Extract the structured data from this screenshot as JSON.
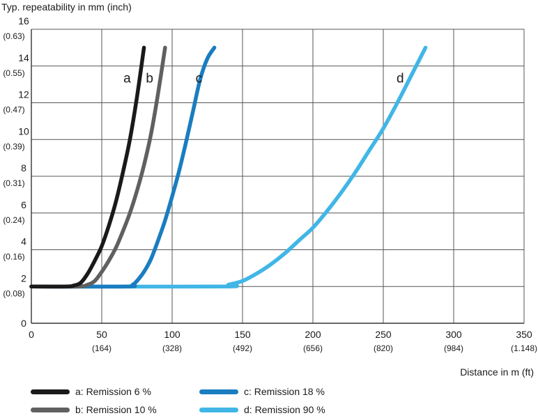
{
  "chart_data": {
    "type": "line",
    "ylabel": "Typ. repeatability in mm (inch)",
    "xlabel": "Distance in m (ft)",
    "xlim": [
      0,
      350
    ],
    "ylim": [
      0,
      16
    ],
    "grid": true,
    "x_ticks": [
      {
        "value": 0,
        "label": "0",
        "sublabel": ""
      },
      {
        "value": 50,
        "label": "50",
        "sublabel": "(164)"
      },
      {
        "value": 100,
        "label": "100",
        "sublabel": "(328)"
      },
      {
        "value": 150,
        "label": "150",
        "sublabel": "(492)"
      },
      {
        "value": 200,
        "label": "200",
        "sublabel": "(656)"
      },
      {
        "value": 250,
        "label": "250",
        "sublabel": "(820)"
      },
      {
        "value": 300,
        "label": "300",
        "sublabel": "(984)"
      },
      {
        "value": 350,
        "label": "350",
        "sublabel": "(1.148)"
      }
    ],
    "y_ticks": [
      {
        "value": 0,
        "label": "0",
        "sublabel": ""
      },
      {
        "value": 2,
        "label": "2",
        "sublabel": "(0.08)"
      },
      {
        "value": 4,
        "label": "4",
        "sublabel": "(0.16)"
      },
      {
        "value": 6,
        "label": "6",
        "sublabel": "(0.24)"
      },
      {
        "value": 8,
        "label": "8",
        "sublabel": "(0.31)"
      },
      {
        "value": 10,
        "label": "10",
        "sublabel": "(0.39)"
      },
      {
        "value": 12,
        "label": "12",
        "sublabel": "(0.47)"
      },
      {
        "value": 14,
        "label": "14",
        "sublabel": "(0.55)"
      },
      {
        "value": 16,
        "label": "16",
        "sublabel": "(0.63)"
      }
    ],
    "series": [
      {
        "name": "a",
        "legend": "a: Remission 6 %",
        "color": "#1a1a1a",
        "label_at": [
          68,
          13.1
        ],
        "points": [
          [
            0,
            2
          ],
          [
            25,
            2
          ],
          [
            30,
            2.05
          ],
          [
            35,
            2.2
          ],
          [
            40,
            2.7
          ],
          [
            45,
            3.4
          ],
          [
            50,
            4.2
          ],
          [
            55,
            5.3
          ],
          [
            60,
            6.6
          ],
          [
            65,
            8.2
          ],
          [
            70,
            10
          ],
          [
            75,
            12.3
          ],
          [
            80,
            15
          ]
        ]
      },
      {
        "name": "b",
        "legend": "b: Remission 10 %",
        "color": "#606060",
        "label_at": [
          84,
          13.1
        ],
        "points": [
          [
            0,
            2
          ],
          [
            33,
            2
          ],
          [
            40,
            2.1
          ],
          [
            45,
            2.3
          ],
          [
            50,
            2.8
          ],
          [
            55,
            3.4
          ],
          [
            60,
            4.1
          ],
          [
            65,
            5
          ],
          [
            70,
            6
          ],
          [
            75,
            7.2
          ],
          [
            80,
            8.6
          ],
          [
            85,
            10.3
          ],
          [
            90,
            12.5
          ],
          [
            95,
            15
          ]
        ]
      },
      {
        "name": "c",
        "legend": "c: Remission 18 %",
        "color": "#1a7dc0",
        "label_at": [
          119,
          13.1
        ],
        "points": [
          [
            0,
            2
          ],
          [
            67,
            2
          ],
          [
            72,
            2.1
          ],
          [
            75,
            2.3
          ],
          [
            80,
            2.8
          ],
          [
            85,
            3.5
          ],
          [
            90,
            4.5
          ],
          [
            95,
            5.6
          ],
          [
            100,
            6.9
          ],
          [
            105,
            8.3
          ],
          [
            110,
            9.9
          ],
          [
            115,
            11.6
          ],
          [
            120,
            13.3
          ],
          [
            125,
            14.4
          ],
          [
            130,
            15
          ]
        ]
      },
      {
        "name": "d",
        "legend": "d: Remission 90 %",
        "color": "#41b6e6",
        "label_at": [
          262,
          13.1
        ],
        "points": [
          [
            0,
            2
          ],
          [
            135,
            2
          ],
          [
            140,
            2.1
          ],
          [
            150,
            2.3
          ],
          [
            160,
            2.7
          ],
          [
            170,
            3.2
          ],
          [
            180,
            3.8
          ],
          [
            190,
            4.5
          ],
          [
            200,
            5.2
          ],
          [
            210,
            6.1
          ],
          [
            220,
            7.1
          ],
          [
            230,
            8.2
          ],
          [
            240,
            9.4
          ],
          [
            250,
            10.6
          ],
          [
            260,
            12
          ],
          [
            270,
            13.5
          ],
          [
            280,
            15
          ]
        ]
      }
    ]
  }
}
